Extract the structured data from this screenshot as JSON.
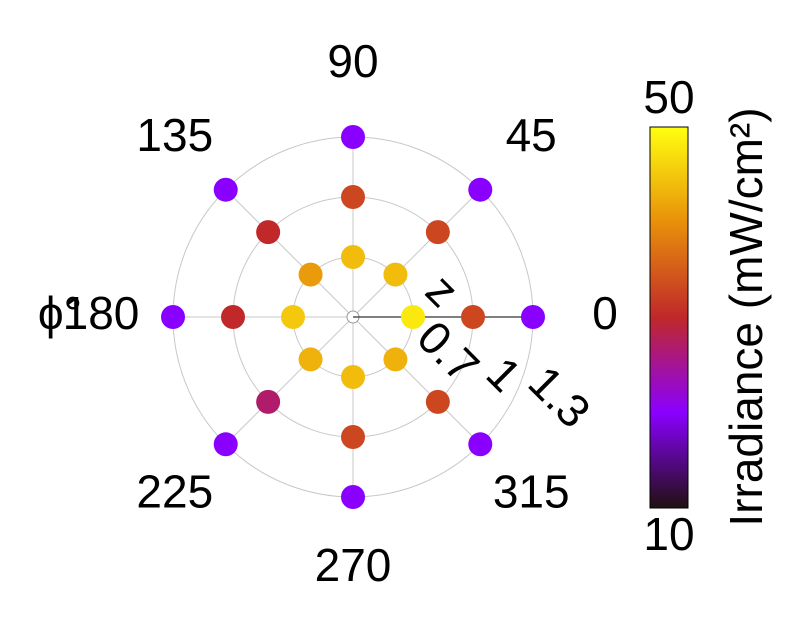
{
  "chart_data": {
    "type": "polar-scatter",
    "theta_label": "ϕ°",
    "r_label": "z",
    "theta": [
      0,
      45,
      90,
      135,
      180,
      225,
      270,
      315,
      0,
      45,
      90,
      135,
      180,
      225,
      270,
      315,
      0,
      45,
      90,
      135,
      180,
      225,
      270,
      315
    ],
    "r": [
      0.7,
      0.7,
      0.7,
      0.7,
      0.7,
      0.7,
      0.7,
      0.7,
      1,
      1,
      1,
      1,
      1,
      1,
      1,
      1,
      1.3,
      1.3,
      1.3,
      1.3,
      1.3,
      1.3,
      1.3,
      1.3
    ],
    "values": [
      48,
      44,
      44,
      41,
      45,
      43,
      44,
      43,
      33,
      33,
      33,
      30,
      30,
      27,
      33,
      33,
      20,
      20,
      20,
      20,
      20,
      20,
      20,
      20
    ],
    "rlim": [
      0.4,
      1.3
    ],
    "rticks": [
      0.7,
      1,
      1.3
    ],
    "thetaticks": [
      0,
      45,
      90,
      135,
      180,
      225,
      270,
      315
    ],
    "grid": true,
    "colormap": [
      "#201010",
      "#8a00ff",
      "#c0282a",
      "#e8900a",
      "#ffff10"
    ],
    "clim": [
      10,
      50
    ],
    "cticks": [
      10,
      50
    ],
    "colorbar_label": "Irradiance (mW/cm²)"
  }
}
